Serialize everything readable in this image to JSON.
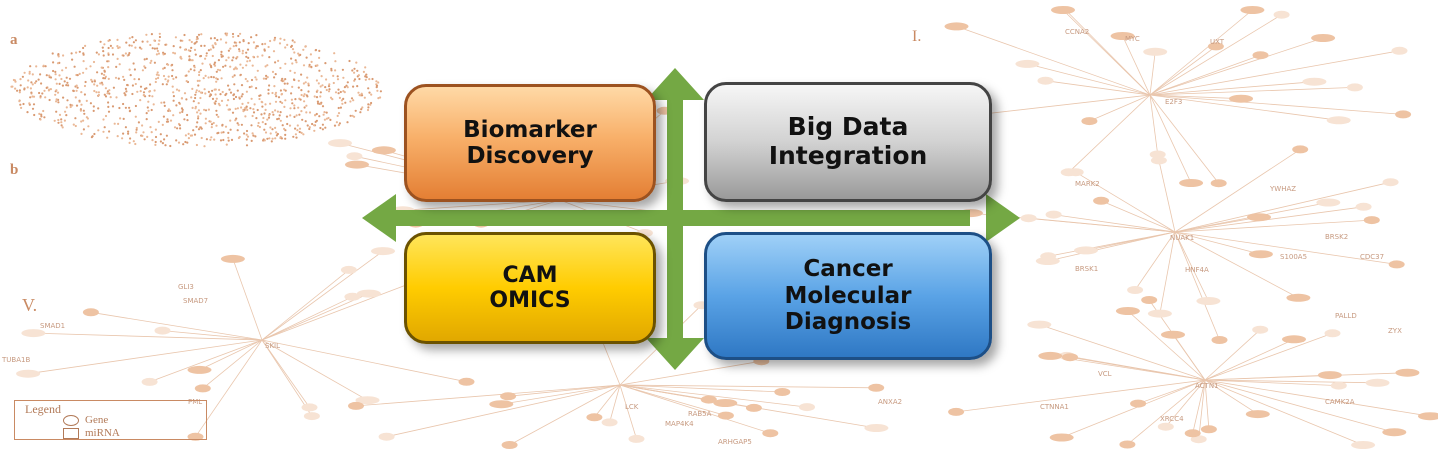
{
  "panels": {
    "a": "a",
    "b": "b",
    "five": "V.",
    "one": "I."
  },
  "boxes": {
    "biomarker": "Biomarker\nDiscovery",
    "bigdata": "Big Data\nIntegration",
    "cam": "CAM\nOMICS",
    "cancer": "Cancer\nMolecular\nDiagnosis"
  },
  "legend": {
    "title": "Legend",
    "gene": "Gene",
    "mirna": "miRNA"
  },
  "network_labels": {
    "n1": "CCNA2",
    "n2": "MYC",
    "n3": "UXT",
    "n4": "E2F3",
    "n5": "MARK2",
    "n6": "YWHAZ",
    "n7": "NUAK1",
    "n8": "BRSK2",
    "n9": "CDC37",
    "n10": "S100A5",
    "n11": "BRSK1",
    "n12": "HNF4A",
    "n13": "ACTN1",
    "n14": "ZYX",
    "n15": "PALLD",
    "n16": "CAMK2A",
    "n17": "VCL",
    "n18": "CTNNA1",
    "n19": "XRCC4",
    "n20": "SMAD1",
    "n21": "SMAD7",
    "n22": "TUBA1B",
    "n23": "GLI3",
    "n24": "SKIL",
    "n25": "PML",
    "n26": "RAB5A",
    "n27": "MAP4K4",
    "n28": "ARHGAP5",
    "n29": "LCK",
    "n30": "ANXA2"
  },
  "colors": {
    "network": "#e3b898",
    "arrow": "#74a844",
    "orange_box": "#f8b06a",
    "gray_box": "#d2d2d2",
    "yellow_box": "#ffcc00",
    "blue_box": "#5aa3e6"
  }
}
